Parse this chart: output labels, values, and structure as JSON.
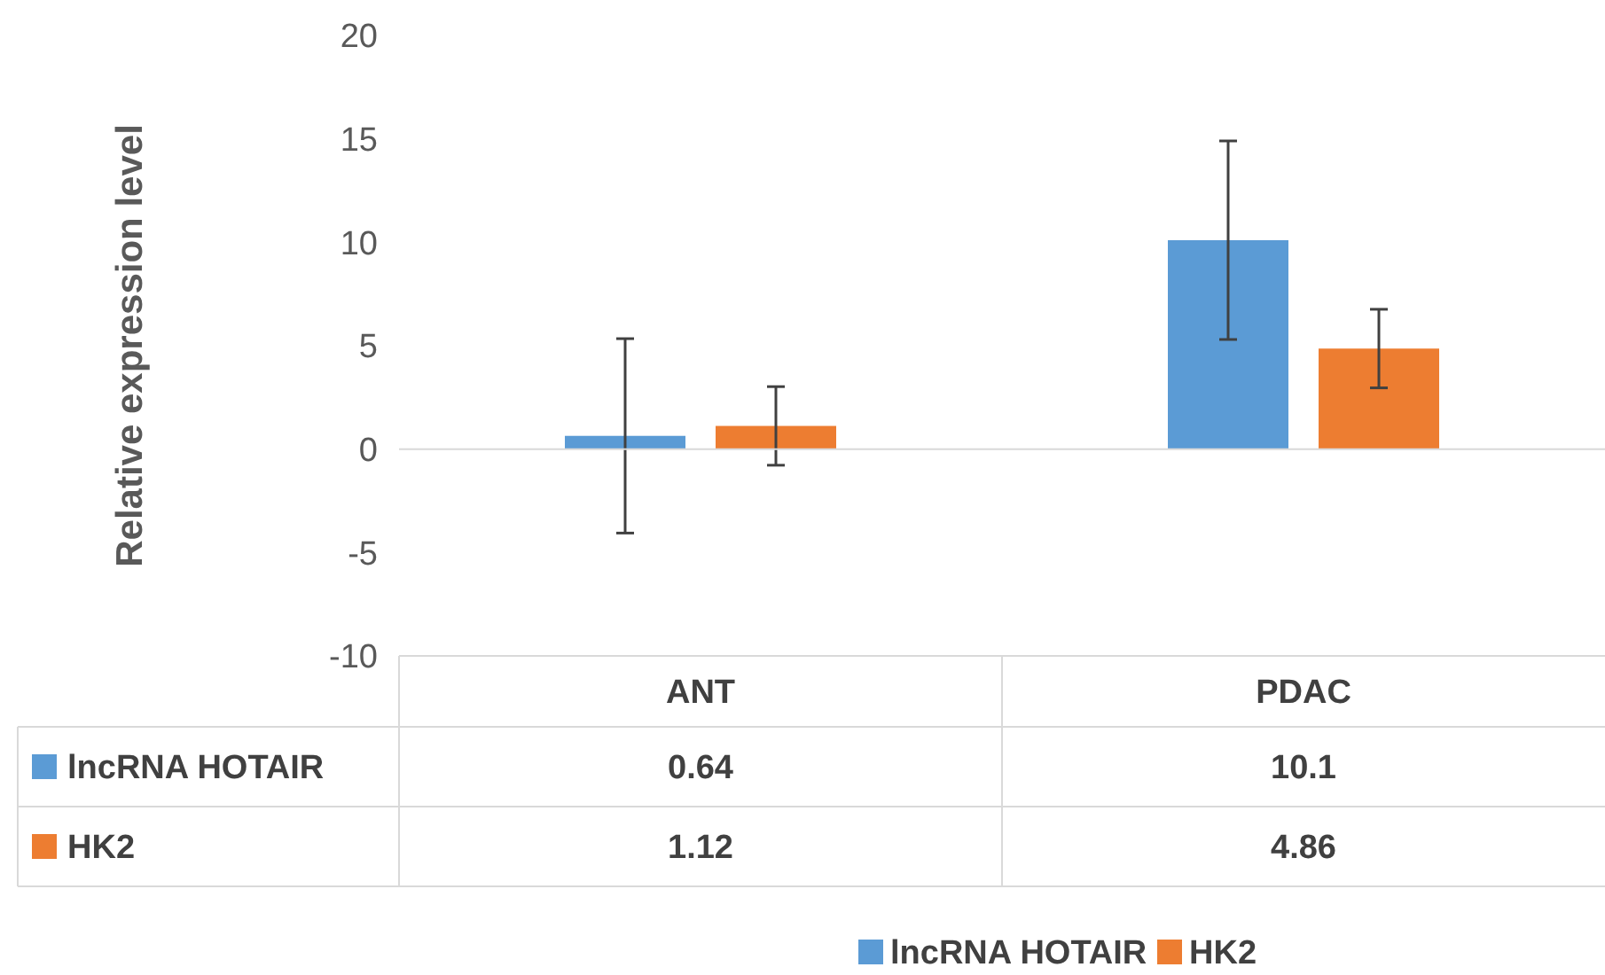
{
  "chart_data": {
    "type": "bar",
    "ylabel": "Relative expression level",
    "categories": [
      "ANT",
      "PDAC"
    ],
    "series": [
      {
        "name": "lncRNA HOTAIR",
        "color": "#5b9bd5",
        "values": [
          0.64,
          10.1
        ],
        "errors": [
          4.7,
          4.8
        ]
      },
      {
        "name": "HK2",
        "color": "#ed7d31",
        "values": [
          1.12,
          4.86
        ],
        "errors": [
          1.9,
          1.9
        ]
      }
    ],
    "ylim": [
      -10,
      20
    ],
    "yticks": [
      -10,
      -5,
      0,
      5,
      10,
      15,
      20
    ],
    "data_labels": true,
    "legend": "bottom"
  }
}
